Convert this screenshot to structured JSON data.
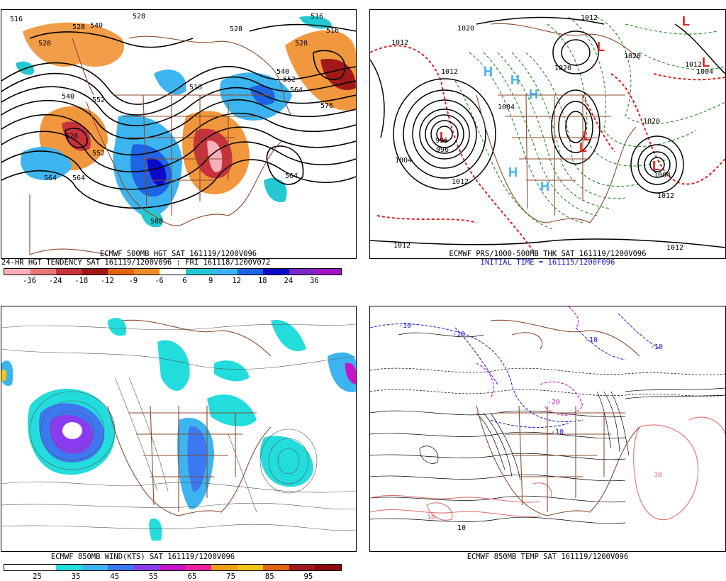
{
  "panels": {
    "top_left": {
      "caption_line1": "ECMWF 500MB HGT SAT 161119/1200V096",
      "caption_line2": "24-HR HGT TENDENCY SAT 161119/1200V096 : FRI 161118/1200V072",
      "colorbar_labels": [
        "-36",
        "-24",
        "-18",
        "-12",
        "-9",
        "-6",
        "6",
        "9",
        "12",
        "18",
        "24",
        "36"
      ],
      "colorbar_colors": [
        "#f7b0b8",
        "#e87878",
        "#c8323c",
        "#a01818",
        "#e06414",
        "#f08c28",
        "#ffffff",
        "#23c8d2",
        "#3cb4f0",
        "#1e64e6",
        "#0a0ac8",
        "#7828c8",
        "#a014c8"
      ],
      "contour_labels": [
        "516",
        "528",
        "540",
        "528",
        "528",
        "516",
        "528",
        "540",
        "552",
        "564",
        "576",
        "564",
        "552",
        "516",
        "528",
        "564",
        "540",
        "552",
        "564",
        "588",
        "516",
        "528"
      ]
    },
    "top_right": {
      "caption_line1": "ECMWF PRS/1000-500MB THK SAT 161119/1200V096",
      "caption_line2": "INITIAL TIME = 161115/1200F096",
      "contour_labels": [
        "1020",
        "1012",
        "1012",
        "1020",
        "1012",
        "1004",
        "996",
        "1004",
        "1012",
        "1020",
        "1012",
        "1012",
        "1004",
        "1012",
        "1012",
        "1020",
        "996",
        "1004"
      ]
    },
    "bottom_left": {
      "caption": "ECMWF 850MB WIND(KTS) SAT 161119/1200V096",
      "colorbar_labels": [
        "25",
        "35",
        "45",
        "55",
        "65",
        "75",
        "85",
        "95"
      ],
      "colorbar_colors": [
        "#ffffff",
        "#ffffff",
        "#23dcdc",
        "#3cb4f0",
        "#3c78f0",
        "#8c3cf0",
        "#c814c8",
        "#f01ea0",
        "#f0a014",
        "#f0c814",
        "#e06414",
        "#a01818",
        "#8c0a0a"
      ]
    },
    "bottom_right": {
      "caption": "ECMWF 850MB TEMP SAT 161119/1200V096",
      "contour_labels": [
        "-10",
        "-10",
        "-10",
        "-10",
        "-20",
        "-10",
        "10",
        "10",
        "10"
      ]
    }
  },
  "colors": {
    "coast": "#8b4a2b",
    "height_contour": "#000000",
    "thickness_red": "#e02020",
    "thickness_green": "#1f8a1f",
    "temp_blue": "#1a1ad0",
    "temp_magenta": "#c814c8",
    "temp_pink": "#e07070"
  }
}
